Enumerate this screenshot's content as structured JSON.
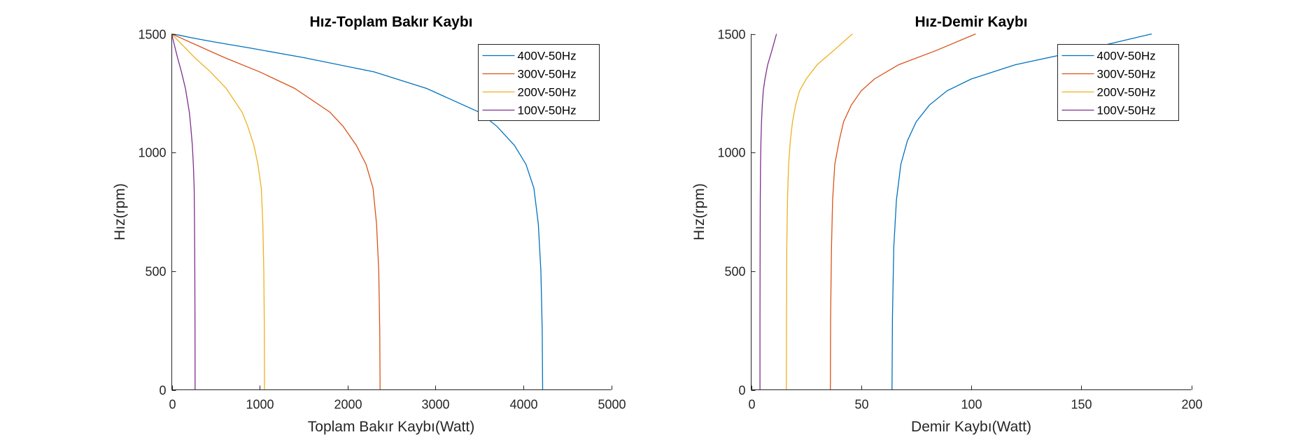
{
  "chart_data": [
    {
      "type": "line",
      "title": "Hız-Toplam Bakır Kaybı",
      "xlabel": "Toplam Bakır Kaybı(Watt)",
      "ylabel": "Hız(rpm)",
      "xlim": [
        0,
        5000
      ],
      "ylim": [
        0,
        1500
      ],
      "xticks": [
        0,
        1000,
        2000,
        3000,
        4000,
        5000
      ],
      "yticks": [
        0,
        500,
        1000,
        1500
      ],
      "legend_position": "top-right",
      "series": [
        {
          "name": "400V-50Hz",
          "color": "#0072BD",
          "x": [
            4220,
            4215,
            4200,
            4170,
            4120,
            4030,
            3900,
            3700,
            3500,
            2900,
            2300,
            1500,
            900,
            500,
            250,
            80,
            0
          ],
          "y": [
            0,
            250,
            500,
            700,
            850,
            950,
            1030,
            1110,
            1170,
            1270,
            1340,
            1400,
            1440,
            1465,
            1482,
            1495,
            1500
          ]
        },
        {
          "name": "300V-50Hz",
          "color": "#D95319",
          "x": [
            2370,
            2366,
            2355,
            2330,
            2290,
            2210,
            2100,
            1950,
            1800,
            1400,
            1000,
            600,
            300,
            120,
            0
          ],
          "y": [
            0,
            250,
            500,
            700,
            850,
            950,
            1030,
            1110,
            1170,
            1270,
            1340,
            1400,
            1450,
            1480,
            1500
          ]
        },
        {
          "name": "200V-50Hz",
          "color": "#EDB120",
          "x": [
            1055,
            1053,
            1047,
            1036,
            1018,
            980,
            935,
            865,
            800,
            620,
            440,
            260,
            130,
            50,
            0
          ],
          "y": [
            0,
            250,
            500,
            700,
            850,
            950,
            1030,
            1110,
            1170,
            1270,
            1340,
            1400,
            1450,
            1480,
            1500
          ]
        },
        {
          "name": "100V-50Hz",
          "color": "#7E2F8E",
          "x": [
            265,
            264,
            262,
            259,
            255,
            245,
            234,
            216,
            200,
            155,
            110,
            65,
            32,
            12,
            0
          ],
          "y": [
            0,
            250,
            500,
            700,
            850,
            950,
            1030,
            1110,
            1170,
            1270,
            1340,
            1400,
            1450,
            1480,
            1500
          ]
        }
      ]
    },
    {
      "type": "line",
      "title": "Hız-Demir Kaybı",
      "xlabel": "Demir Kaybı(Watt)",
      "ylabel": "Hız(rpm)",
      "xlim": [
        0,
        200
      ],
      "ylim": [
        0,
        1500
      ],
      "xticks": [
        0,
        50,
        100,
        150,
        200
      ],
      "yticks": [
        0,
        500,
        1000,
        1500
      ],
      "legend_position": "top-right",
      "series": [
        {
          "name": "400V-50Hz",
          "color": "#0072BD",
          "x": [
            64,
            64.2,
            64.8,
            66,
            68,
            71,
            75,
            81,
            89,
            100,
            120,
            150,
            182
          ],
          "y": [
            0,
            300,
            600,
            800,
            950,
            1050,
            1130,
            1200,
            1260,
            1310,
            1370,
            1430,
            1500
          ]
        },
        {
          "name": "300V-50Hz",
          "color": "#D95319",
          "x": [
            36,
            36.1,
            36.5,
            37,
            38,
            40,
            42,
            45.5,
            50,
            56,
            67,
            84,
            102
          ],
          "y": [
            0,
            300,
            600,
            800,
            950,
            1050,
            1130,
            1200,
            1260,
            1310,
            1370,
            1430,
            1500
          ]
        },
        {
          "name": "200V-50Hz",
          "color": "#EDB120",
          "x": [
            16,
            16.05,
            16.2,
            16.5,
            17,
            17.8,
            18.8,
            20.2,
            22,
            25,
            30,
            37.5,
            46
          ],
          "y": [
            0,
            300,
            600,
            800,
            950,
            1050,
            1130,
            1200,
            1260,
            1310,
            1370,
            1430,
            1500
          ]
        },
        {
          "name": "100V-50Hz",
          "color": "#7E2F8E",
          "x": [
            4,
            4.02,
            4.06,
            4.12,
            4.25,
            4.45,
            4.7,
            5.05,
            5.5,
            6.25,
            7.5,
            9.4,
            11.5
          ],
          "y": [
            0,
            300,
            600,
            800,
            950,
            1050,
            1130,
            1200,
            1260,
            1310,
            1370,
            1430,
            1500
          ]
        }
      ]
    }
  ]
}
